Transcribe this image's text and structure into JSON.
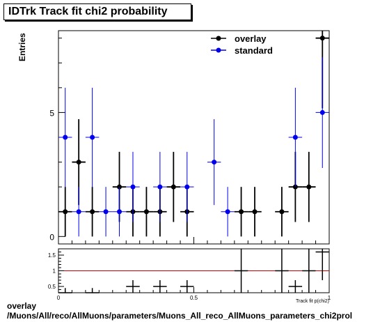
{
  "chart_data": [
    {
      "type": "scatter",
      "title": "IDTrk Track fit chi2 probability",
      "ylabel": "Entries",
      "xlabel": "Track fit p(chi2)",
      "xlim": [
        0,
        1
      ],
      "ylim": [
        -0.3,
        8.3
      ],
      "yticks": [
        0,
        5
      ],
      "xticks": [
        0,
        0.5,
        1
      ],
      "legend_position": "top-right",
      "series": [
        {
          "name": "overlay",
          "color": "#000000",
          "x": [
            0.025,
            0.075,
            0.125,
            0.225,
            0.275,
            0.325,
            0.375,
            0.425,
            0.475,
            0.675,
            0.725,
            0.825,
            0.875,
            0.925,
            0.975
          ],
          "y": [
            1,
            3,
            1,
            2,
            1,
            1,
            1,
            2,
            1,
            1,
            1,
            1,
            2,
            2,
            8
          ]
        },
        {
          "name": "standard",
          "color": "#0000ee",
          "x": [
            0.025,
            0.075,
            0.125,
            0.175,
            0.225,
            0.275,
            0.375,
            0.475,
            0.575,
            0.625,
            0.875,
            0.975
          ],
          "y": [
            4,
            1,
            4,
            1,
            1,
            2,
            2,
            2,
            3,
            1,
            4,
            5
          ]
        }
      ]
    },
    {
      "type": "scatter",
      "xlim": [
        0,
        1
      ],
      "ylim": [
        0.3,
        1.7
      ],
      "yticks": [
        0.5,
        1,
        1.5
      ],
      "xticks": [
        0,
        0.5,
        1
      ],
      "reference_line": 1,
      "reference_color": "#cc0000",
      "series": [
        {
          "x": [
            0.025,
            0.125,
            0.275,
            0.375,
            0.475,
            0.675,
            0.825,
            0.875,
            0.925,
            0.975
          ],
          "y": [
            0.25,
            0.25,
            0.5,
            0.5,
            0.5,
            1.0,
            1.0,
            0.5,
            1.0,
            1.6
          ]
        }
      ]
    }
  ],
  "footer": {
    "line1": "overlay",
    "line2": "/Muons/All/reco/AllMuons/parameters/Muons_All_reco_AllMuons_parameters_chi2prol"
  }
}
